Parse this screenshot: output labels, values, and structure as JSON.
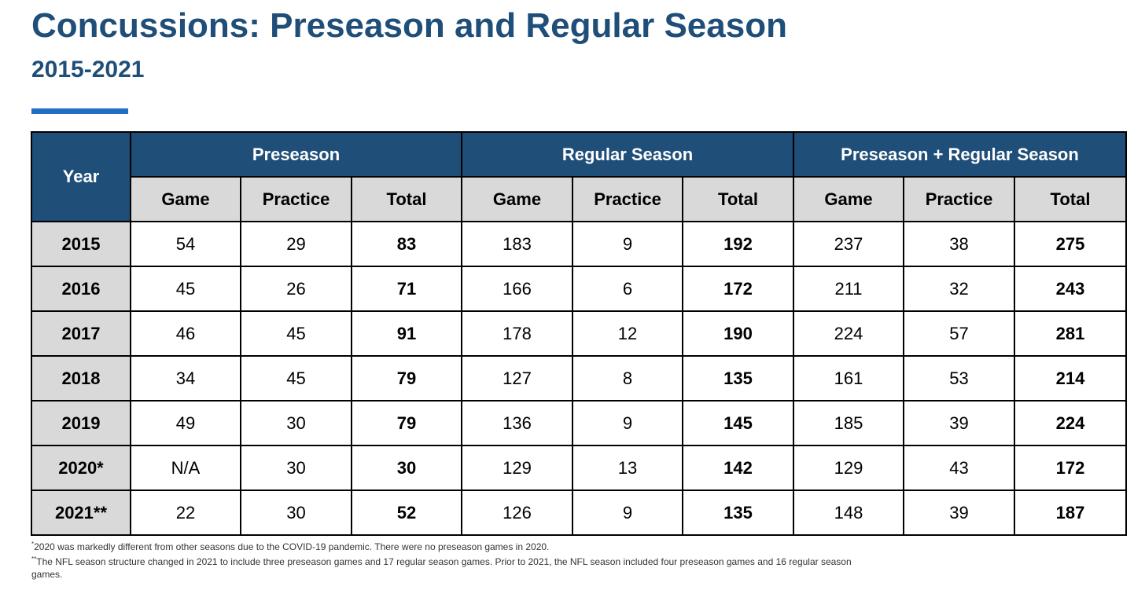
{
  "title": "Concussions: Preseason and Regular Season",
  "subtitle": "2015-2021",
  "colors": {
    "header_blue": "#1f4e79",
    "accent_blue": "#1f6fc5",
    "subheader_gray": "#d9d9d9"
  },
  "chart_data": {
    "type": "table",
    "title": "Concussions: Preseason and Regular Season",
    "subtitle": "2015-2021",
    "year_header": "Year",
    "groups": [
      "Preseason",
      "Regular Season",
      "Preseason + Regular Season"
    ],
    "subcolumns": [
      "Game",
      "Practice",
      "Total"
    ],
    "rows": [
      {
        "year": "2015",
        "values": [
          "54",
          "29",
          "83",
          "183",
          "9",
          "192",
          "237",
          "38",
          "275"
        ]
      },
      {
        "year": "2016",
        "values": [
          "45",
          "26",
          "71",
          "166",
          "6",
          "172",
          "211",
          "32",
          "243"
        ]
      },
      {
        "year": "2017",
        "values": [
          "46",
          "45",
          "91",
          "178",
          "12",
          "190",
          "224",
          "57",
          "281"
        ]
      },
      {
        "year": "2018",
        "values": [
          "34",
          "45",
          "79",
          "127",
          "8",
          "135",
          "161",
          "53",
          "214"
        ]
      },
      {
        "year": "2019",
        "values": [
          "49",
          "30",
          "79",
          "136",
          "9",
          "145",
          "185",
          "39",
          "224"
        ]
      },
      {
        "year": "2020*",
        "values": [
          "N/A",
          "30",
          "30",
          "129",
          "13",
          "142",
          "129",
          "43",
          "172"
        ]
      },
      {
        "year": "2021**",
        "values": [
          "22",
          "30",
          "52",
          "126",
          "9",
          "135",
          "148",
          "39",
          "187"
        ]
      }
    ]
  },
  "footnotes": [
    {
      "marker": "*",
      "text": "2020 was markedly different from other seasons due to the COVID-19 pandemic. There were no preseason games in 2020."
    },
    {
      "marker": "**",
      "text": "The NFL season structure changed in 2021 to include three preseason games and 17 regular season games. Prior to 2021, the NFL season included four preseason games and 16 regular season games."
    }
  ]
}
